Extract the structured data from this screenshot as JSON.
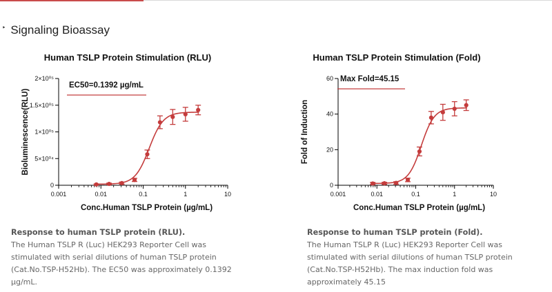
{
  "section": {
    "bullet": "‣",
    "title": "Signaling Bioassay"
  },
  "charts": [
    {
      "id": "rlu"
    },
    {
      "id": "fold"
    }
  ],
  "chart_data": [
    {
      "type": "scatter",
      "title": "Human TSLP Protein Stimulation (RLU)",
      "xlabel": "Conc.Human TSLP Protein (µg/mL)",
      "ylabel": "Bioluminescence(RLU)",
      "xscale": "log",
      "xlim": [
        0.001,
        10
      ],
      "ylim": [
        0,
        200000
      ],
      "x_ticks": [
        "0.001",
        "0.01",
        "0.1",
        "1",
        "10"
      ],
      "y_ticks": [
        "0",
        "5×10⁰⁴",
        "1×10⁰⁵",
        "1.5×10⁰⁵",
        "2×10⁰⁵"
      ],
      "annotation": "EC50=0.1392 µg/mL",
      "ec50": 0.1392,
      "series": [
        {
          "name": "RLU",
          "color": "#c43c3c",
          "x": [
            0.0078,
            0.0156,
            0.03125,
            0.0625,
            0.125,
            0.25,
            0.5,
            1,
            2
          ],
          "y": [
            1500,
            2500,
            4000,
            10000,
            58000,
            118000,
            128000,
            133000,
            141000
          ],
          "err": [
            1000,
            1500,
            2000,
            3000,
            8000,
            12000,
            14000,
            13000,
            9000
          ],
          "fit": {
            "bottom": 2000,
            "top": 137000,
            "hill": 2.6
          }
        }
      ]
    },
    {
      "type": "scatter",
      "title": "Human TSLP Protein Stimulation (Fold)",
      "xlabel": "Conc.Human TSLP Protein (µg/mL)",
      "ylabel": "Fold of Induction",
      "xscale": "log",
      "xlim": [
        0.001,
        10
      ],
      "ylim": [
        0,
        60
      ],
      "x_ticks": [
        "0.001",
        "0.01",
        "0.1",
        "1",
        "10"
      ],
      "y_ticks": [
        "0",
        "20",
        "40",
        "60"
      ],
      "annotation": "Max Fold=45.15",
      "ec50": 0.1392,
      "series": [
        {
          "name": "Fold",
          "color": "#c43c3c",
          "x": [
            0.0078,
            0.0156,
            0.03125,
            0.0625,
            0.125,
            0.25,
            0.5,
            1,
            2
          ],
          "y": [
            1.0,
            1.1,
            1.3,
            3.0,
            19.0,
            38.0,
            41.0,
            43.0,
            45.0
          ],
          "err": [
            0.6,
            0.6,
            0.7,
            1.0,
            2.5,
            3.5,
            4.5,
            4.0,
            3.0
          ],
          "fit": {
            "bottom": 1.0,
            "top": 43.5,
            "hill": 2.6
          }
        }
      ]
    }
  ],
  "captions": [
    {
      "title": "Response to human TSLP protein (RLU).",
      "lines": [
        "The Human TSLP R (Luc) HEK293 Reporter Cell was",
        "stimulated with serial dilutions of human TSLP protein",
        "(Cat.No.TSP-H52Hb). The EC50 was approximately 0.1392",
        "µg/mL."
      ]
    },
    {
      "title": "Response to human TSLP protein (Fold).",
      "lines": [
        "The Human TSLP R (Luc) HEK293 Reporter Cell was",
        "stimulated with serial dilutions of human TSLP protein",
        "(Cat.No.TSP-H52Hb). The max induction fold was",
        "approximately 45.15"
      ]
    }
  ]
}
